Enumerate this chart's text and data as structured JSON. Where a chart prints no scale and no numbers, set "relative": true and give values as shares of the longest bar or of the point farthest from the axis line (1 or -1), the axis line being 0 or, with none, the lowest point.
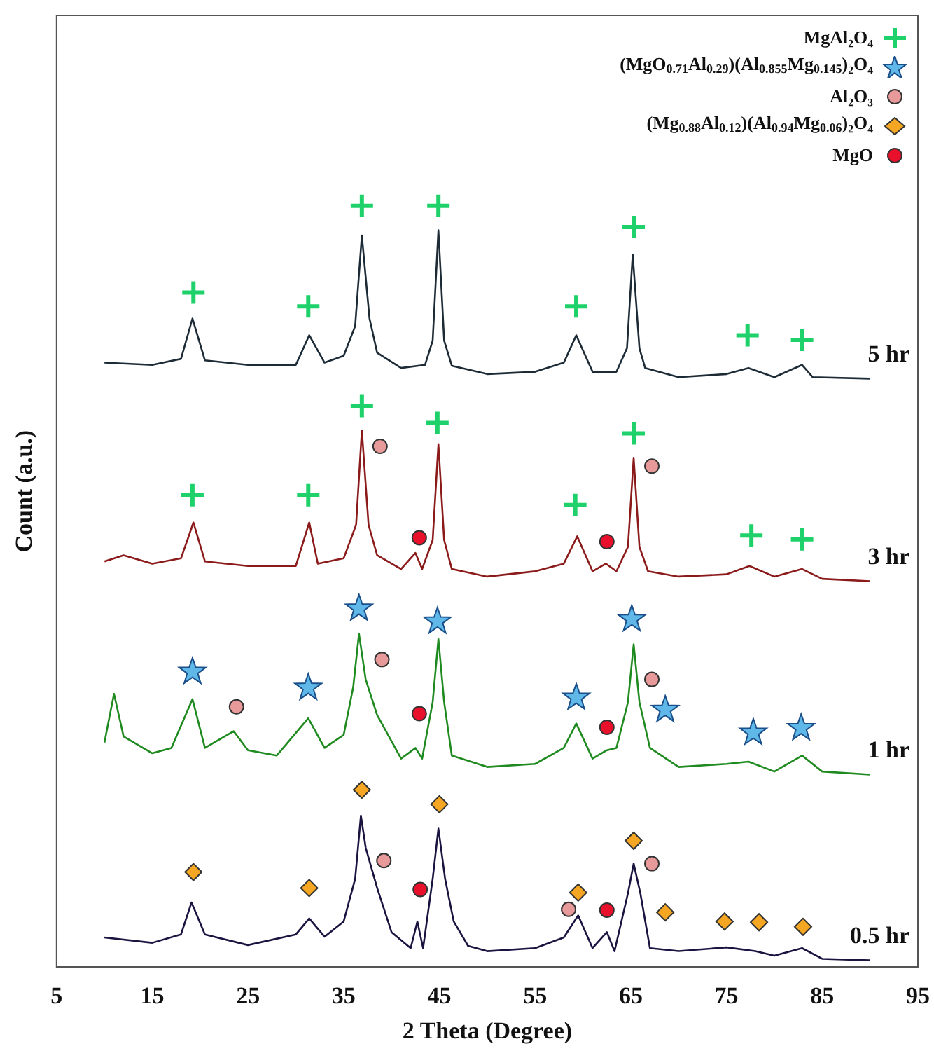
{
  "chart_data": {
    "type": "line",
    "relative": true,
    "xlabel": "2 Theta (Degree)",
    "ylabel": "Count (a.u.)",
    "xlim": [
      5,
      95
    ],
    "xticks": [
      5,
      15,
      25,
      35,
      45,
      55,
      65,
      75,
      85,
      95
    ],
    "legend": "top right",
    "grid": false,
    "series": [
      {
        "name": "5 hr",
        "color": "#1c2b36",
        "x": [
          10,
          15,
          18,
          19.2,
          20.5,
          25,
          30,
          31.4,
          33,
          35,
          36.2,
          36.9,
          37.7,
          38.5,
          41,
          43.5,
          44.3,
          44.9,
          45.5,
          46.3,
          50,
          55,
          58,
          59.3,
          61,
          63.5,
          64.6,
          65.2,
          65.9,
          66.5,
          70,
          75,
          77.3,
          80,
          82.9,
          84,
          90
        ],
        "values": [
          0.794,
          0.791,
          0.799,
          0.852,
          0.797,
          0.791,
          0.791,
          0.83,
          0.794,
          0.803,
          0.842,
          0.961,
          0.852,
          0.807,
          0.787,
          0.791,
          0.823,
          0.968,
          0.823,
          0.79,
          0.779,
          0.782,
          0.794,
          0.83,
          0.782,
          0.782,
          0.813,
          0.936,
          0.813,
          0.787,
          0.775,
          0.779,
          0.787,
          0.775,
          0.791,
          0.775,
          0.773
        ]
      },
      {
        "name": "3 hr",
        "color": "#8b1a1a",
        "x": [
          10,
          12,
          15,
          18,
          19.3,
          20.5,
          25,
          30,
          31.4,
          32.3,
          35,
          36.3,
          36.9,
          37.6,
          38.5,
          41,
          42.5,
          43.2,
          44.3,
          44.9,
          45.5,
          46.3,
          50,
          55,
          58,
          59.4,
          61,
          62.4,
          63.5,
          64.7,
          65.3,
          65.9,
          66.8,
          70,
          75,
          77.4,
          80,
          82.9,
          85,
          90
        ],
        "values": [
          0.533,
          0.541,
          0.53,
          0.537,
          0.584,
          0.533,
          0.527,
          0.527,
          0.584,
          0.53,
          0.537,
          0.581,
          0.705,
          0.581,
          0.541,
          0.523,
          0.544,
          0.523,
          0.561,
          0.687,
          0.561,
          0.523,
          0.513,
          0.52,
          0.53,
          0.566,
          0.52,
          0.53,
          0.52,
          0.552,
          0.669,
          0.552,
          0.52,
          0.513,
          0.516,
          0.527,
          0.513,
          0.523,
          0.51,
          0.507
        ]
      },
      {
        "name": "1 hr",
        "color": "#1f8a1f",
        "x": [
          10,
          11,
          12,
          15,
          17,
          19.2,
          20.5,
          23.5,
          25,
          28,
          31.3,
          33,
          35,
          36,
          36.6,
          37.3,
          38.5,
          41,
          42.5,
          43.2,
          44.3,
          44.9,
          45.5,
          46.3,
          50,
          55,
          58,
          59.3,
          61,
          62.5,
          63.5,
          64.7,
          65.3,
          65.9,
          67,
          70,
          75,
          77.3,
          80,
          82.9,
          85,
          90
        ],
        "values": [
          0.295,
          0.359,
          0.303,
          0.281,
          0.288,
          0.352,
          0.288,
          0.31,
          0.285,
          0.278,
          0.327,
          0.288,
          0.305,
          0.368,
          0.438,
          0.378,
          0.331,
          0.274,
          0.288,
          0.274,
          0.348,
          0.431,
          0.348,
          0.278,
          0.263,
          0.267,
          0.288,
          0.32,
          0.274,
          0.285,
          0.288,
          0.348,
          0.424,
          0.348,
          0.288,
          0.263,
          0.267,
          0.27,
          0.257,
          0.278,
          0.257,
          0.253
        ]
      },
      {
        "name": "0.5 hr",
        "color": "#1a1540",
        "x": [
          10,
          15,
          18,
          19.1,
          20.5,
          25,
          30,
          31.4,
          33,
          35,
          36.2,
          36.8,
          37.3,
          38.5,
          40,
          42,
          42.7,
          43.3,
          44.3,
          44.9,
          45.6,
          46.5,
          48,
          50,
          55,
          58,
          59.5,
          61,
          62.5,
          63.3,
          64.7,
          65.3,
          66,
          67,
          70,
          75,
          78,
          80,
          82.9,
          85,
          90
        ],
        "values": [
          0.039,
          0.032,
          0.043,
          0.085,
          0.043,
          0.029,
          0.043,
          0.064,
          0.04,
          0.06,
          0.116,
          0.199,
          0.157,
          0.104,
          0.046,
          0.025,
          0.06,
          0.025,
          0.116,
          0.182,
          0.116,
          0.06,
          0.028,
          0.021,
          0.025,
          0.039,
          0.068,
          0.025,
          0.046,
          0.021,
          0.097,
          0.136,
          0.097,
          0.025,
          0.021,
          0.026,
          0.021,
          0.015,
          0.025,
          0.011,
          0.009
        ]
      },
      {
        "name": "MgAl₂O₄",
        "type": "scatter",
        "marker": "cross",
        "color": "#1fd16a",
        "x": [
          19.3,
          31.3,
          36.9,
          44.9,
          59.3,
          65.3,
          77.2,
          82.9,
          19.2,
          31.3,
          36.9,
          44.8,
          59.2,
          65.3,
          77.6,
          82.9
        ],
        "values": [
          0.886,
          0.868,
          1,
          1,
          0.868,
          0.972,
          0.83,
          0.824,
          0.62,
          0.62,
          0.737,
          0.715,
          0.607,
          0.701,
          0.567,
          0.562
        ]
      },
      {
        "name": "(MgO$_{0.71}$Al$_{0.29}$)(Al$_{0.855}$Mg$_{0.145}$)₂O₄",
        "type": "scatter",
        "marker": "star",
        "color": "#5fb8e8",
        "x": [
          19.2,
          31.3,
          36.6,
          44.8,
          59.3,
          65.1,
          68.6,
          77.8,
          82.8
        ],
        "values": [
          0.388,
          0.367,
          0.471,
          0.454,
          0.354,
          0.457,
          0.338,
          0.308,
          0.314
        ]
      },
      {
        "name": "Al₂O₃",
        "type": "scatter",
        "marker": "circle",
        "color": "#e89a9a",
        "x": [
          38.8,
          67.2,
          23.8,
          39.0,
          67.2,
          39.2,
          58.5,
          67.2
        ],
        "values": [
          0.684,
          0.658,
          0.342,
          0.404,
          0.378,
          0.14,
          0.076,
          0.136
        ]
      },
      {
        "name": "(Mg$_{0.88}$Al$_{0.12}$)(Al$_{0.94}$Mg$_{0.06}$)₂O₄",
        "type": "scatter",
        "marker": "diamond",
        "color": "#f5a623",
        "x": [
          19.3,
          31.4,
          36.9,
          45.0,
          59.5,
          65.3,
          68.6,
          74.8,
          78.4,
          83.0
        ],
        "values": [
          0.125,
          0.104,
          0.233,
          0.214,
          0.098,
          0.166,
          0.072,
          0.06,
          0.059,
          0.053
        ]
      },
      {
        "name": "MgO",
        "type": "scatter",
        "marker": "circle",
        "color": "#e8102a",
        "x": [
          42.9,
          62.5,
          42.9,
          62.5,
          43.0,
          62.5
        ],
        "values": [
          0.564,
          0.559,
          0.333,
          0.315,
          0.102,
          0.075
        ]
      }
    ]
  }
}
